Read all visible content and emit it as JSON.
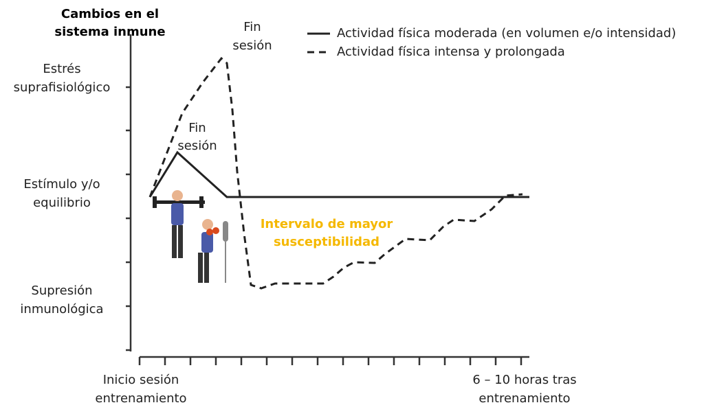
{
  "y_axis": {
    "title": [
      "Cambios en el",
      "sistema inmune"
    ],
    "labels": [
      [
        "Estrés",
        "suprafisiológico"
      ],
      [
        "Estímulo y/o",
        "equilibrio"
      ],
      [
        "Supresión",
        "inmunológica"
      ]
    ]
  },
  "x_axis": {
    "labels": [
      [
        "Inicio sesión",
        "entrenamiento"
      ],
      [
        "6 – 10 horas tras",
        "entrenamiento"
      ]
    ]
  },
  "legend": [
    "Actividad física moderada (en volumen e/o intensidad)",
    "Actividad física intensa y prolongada"
  ],
  "annotations": {
    "end_intense": [
      "Fin",
      "sesión"
    ],
    "end_moderate": [
      "Fin",
      "sesión"
    ],
    "interval": [
      "Intervalo de mayor",
      "susceptibilidad"
    ]
  }
}
